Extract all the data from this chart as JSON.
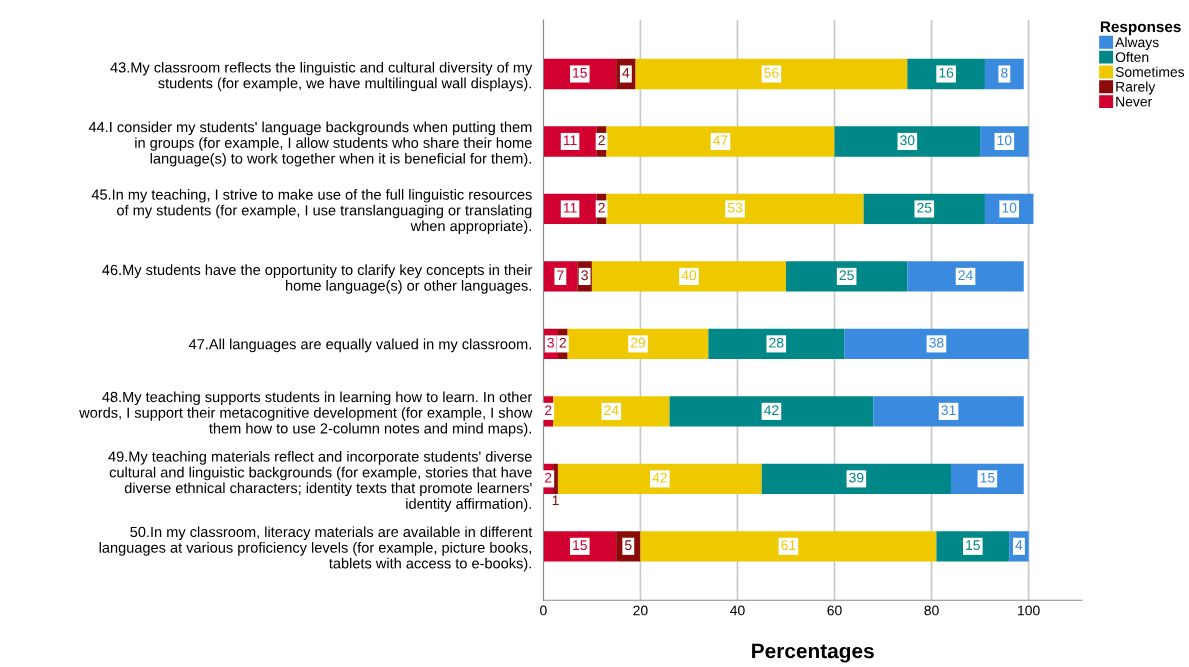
{
  "chart_data": {
    "type": "bar",
    "orientation": "horizontal",
    "stacked": true,
    "xlabel": "Percentages",
    "legend_title": "Responses",
    "legend": "top right",
    "grid": "x",
    "data_labels": true,
    "categories": [
      "43.My classroom reflects the linguistic and cultural diversity of my\nstudents (for example, we have multilingual wall displays).",
      "44.I consider my students' language backgrounds when putting them\nin groups (for example, I allow students who share their home\nlanguage(s) to work together when it is beneficial for them).",
      "45.In my teaching, I strive to make use of the full linguistic resources\nof my students (for example, I use translanguaging or translating\nwhen appropriate).",
      "46.My students have the opportunity to clarify key concepts in their\nhome language(s) or other languages.",
      "47.All languages are equally valued in my classroom.",
      "48.My teaching supports students in learning how to learn. In other\nwords, I support their metacognitive development (for example, I show\nthem how to use 2-column notes and mind maps).",
      "49.My teaching materials reflect and incorporate students' diverse\ncultural and linguistic backgrounds (for example, stories that have\ndiverse ethnical characters; identity texts that promote learners'\nidentity affirmation).",
      "50.In my classroom, literacy materials are available in different\nlanguages at various proficiency levels (for example, picture books,\ntablets with access to e-books)."
    ],
    "series": [
      {
        "name": "Never",
        "color": "#d2002f",
        "values": [
          15,
          11,
          11,
          7,
          3,
          2,
          2,
          15
        ]
      },
      {
        "name": "Rarely",
        "color": "#8b0a0a",
        "values": [
          4,
          2,
          2,
          3,
          2,
          null,
          1,
          5
        ]
      },
      {
        "name": "Sometimes",
        "color": "#eec900",
        "values": [
          56,
          47,
          53,
          40,
          29,
          24,
          42,
          61
        ]
      },
      {
        "name": "Often",
        "color": "#008787",
        "values": [
          16,
          30,
          25,
          25,
          28,
          42,
          39,
          15
        ]
      },
      {
        "name": "Always",
        "color": "#3a8ae0",
        "values": [
          8,
          10,
          10,
          24,
          38,
          31,
          15,
          4
        ]
      }
    ],
    "xlim": [
      0,
      111
    ],
    "xticks": [
      0,
      20,
      40,
      60,
      80,
      100
    ]
  }
}
